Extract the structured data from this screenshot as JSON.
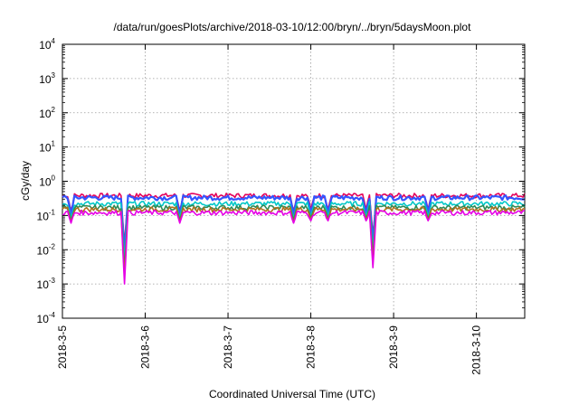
{
  "chart_data": {
    "type": "line",
    "title": "/data/run/goesPlots/archive/2018-03-10/12:00/bryn/../bryn/5daysMoon.plot",
    "xlabel": "Coordinated Universal Time (UTC)",
    "ylabel": "cGy/day",
    "y_scale": "log",
    "ylim": [
      0.0001,
      10000
    ],
    "y_tick_labels": [
      {
        "base": "10",
        "exp": "-4",
        "value": 0.0001
      },
      {
        "base": "10",
        "exp": "-3",
        "value": 0.001
      },
      {
        "base": "10",
        "exp": "-2",
        "value": 0.01
      },
      {
        "base": "10",
        "exp": "-1",
        "value": 0.1
      },
      {
        "base": "10",
        "exp": "0",
        "value": 1
      },
      {
        "base": "10",
        "exp": "1",
        "value": 10
      },
      {
        "base": "10",
        "exp": "2",
        "value": 100
      },
      {
        "base": "10",
        "exp": "3",
        "value": 1000
      },
      {
        "base": "10",
        "exp": "4",
        "value": 10000
      }
    ],
    "x_tick_labels": [
      "2018-3-5",
      "2018-3-6",
      "2018-3-7",
      "2018-3-8",
      "2018-3-9",
      "2018-3-10"
    ],
    "xlim": [
      "2018-03-05T00:00",
      "2018-03-10T14:00"
    ],
    "grid": true,
    "legend": "none",
    "series": [
      {
        "color": "#e5005a",
        "base": 0.38
      },
      {
        "color": "#3355ff",
        "base": 0.33
      },
      {
        "color": "#00c8c8",
        "base": 0.22
      },
      {
        "color": "#2e8b57",
        "base": 0.17
      },
      {
        "color": "#b07020",
        "base": 0.15
      },
      {
        "color": "#e600e6",
        "base": 0.12
      }
    ],
    "dips": [
      {
        "time": "2018-03-05T02:30",
        "value": 0.06
      },
      {
        "time": "2018-03-05T18:00",
        "value": 0.001
      },
      {
        "time": "2018-03-06T10:00",
        "value": 0.06
      },
      {
        "time": "2018-03-07T19:00",
        "value": 0.06
      },
      {
        "time": "2018-03-08T00:00",
        "value": 0.07
      },
      {
        "time": "2018-03-08T05:00",
        "value": 0.07
      },
      {
        "time": "2018-03-08T16:00",
        "value": 0.07
      },
      {
        "time": "2018-03-08T18:00",
        "value": 0.003
      },
      {
        "time": "2018-03-09T10:00",
        "value": 0.07
      }
    ]
  }
}
